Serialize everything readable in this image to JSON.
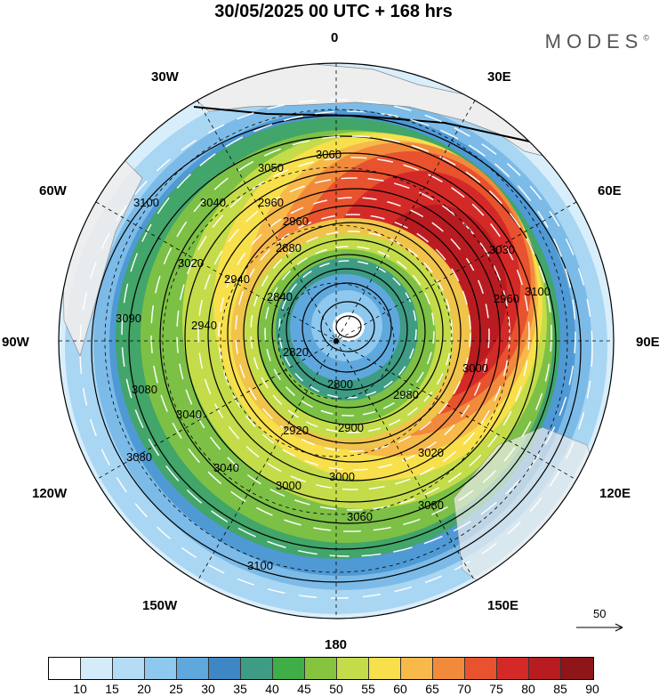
{
  "title": "30/05/2025  00 UTC  + 168 hrs",
  "brand": "MODES",
  "brand_mark": "©",
  "longitude_labels": {
    "top": "0",
    "top_left": "30W",
    "top_right": "30E",
    "upper_left": "60W",
    "upper_right": "60E",
    "left": "90W",
    "right": "90E",
    "lower_left": "120W",
    "lower_right": "120E",
    "bottom_left": "150W",
    "bottom_right": "150E",
    "bottom": "180"
  },
  "wind_reference": {
    "value": "50"
  },
  "contour_labels": [
    "3060",
    "3050",
    "3040",
    "3100",
    "3020",
    "2960",
    "2940",
    "2880",
    "2840",
    "2820",
    "2800",
    "2900",
    "2920",
    "2980",
    "3000",
    "3080",
    "3030",
    "3020",
    "3000",
    "2940",
    "2960",
    "3060",
    "3080",
    "3100",
    "3040",
    "3000",
    "3090",
    "3040",
    "3080",
    "2960"
  ],
  "colorbar": {
    "ticks": [
      "10",
      "15",
      "20",
      "25",
      "30",
      "35",
      "40",
      "45",
      "50",
      "55",
      "60",
      "65",
      "70",
      "75",
      "80",
      "85",
      "90"
    ],
    "colors": [
      "#ffffff",
      "#d4ecfa",
      "#b4dcf5",
      "#8ec8ee",
      "#5fa8dd",
      "#3f86c4",
      "#3e9c84",
      "#3fae47",
      "#86c440",
      "#c4dc4a",
      "#f7e04c",
      "#f6b94a",
      "#f28a3c",
      "#e8522e",
      "#d42a27",
      "#b81c21",
      "#8e1518"
    ],
    "unit_label": ""
  },
  "map_colors": {
    "land": "#eeeeee",
    "frame": "#000000"
  }
}
